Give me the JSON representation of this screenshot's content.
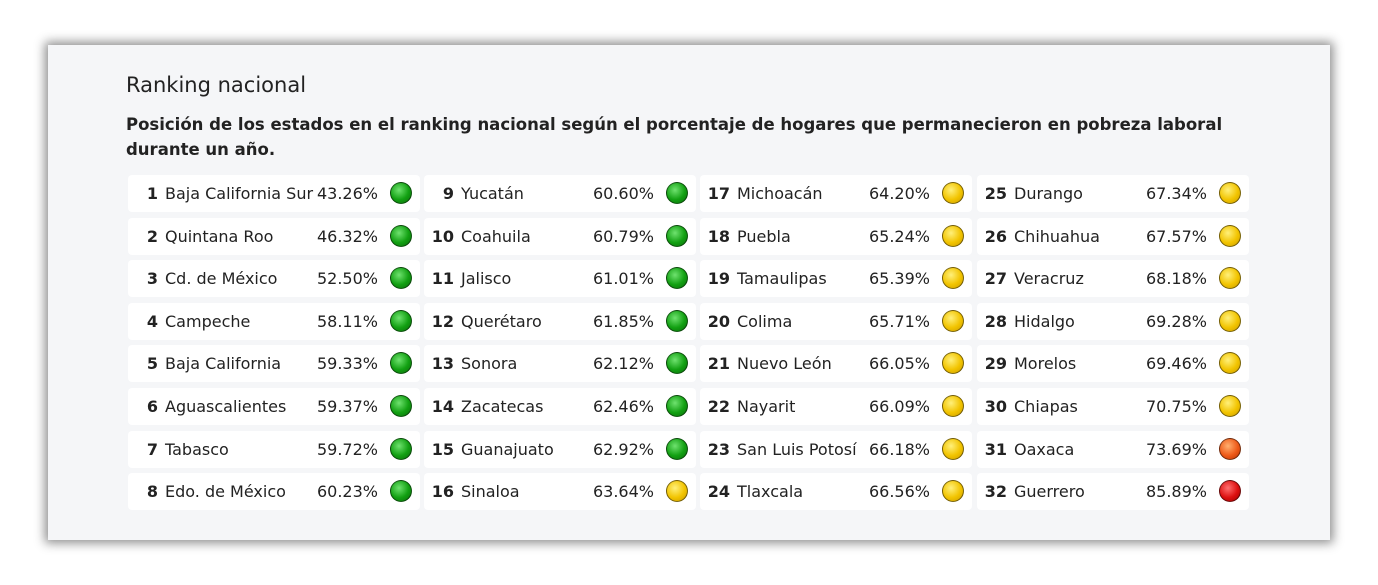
{
  "header": {
    "title": "Ranking nacional",
    "subtitle": "Posición de los estados en el ranking nacional según el porcentaje de hogares que permanecieron en pobreza laboral durante un año."
  },
  "table": {
    "rows": [
      {
        "rank": 1,
        "state": "Baja California Sur",
        "percent": "43.26%",
        "color": "green"
      },
      {
        "rank": 2,
        "state": "Quintana Roo",
        "percent": "46.32%",
        "color": "green"
      },
      {
        "rank": 3,
        "state": "Cd. de México",
        "percent": "52.50%",
        "color": "green"
      },
      {
        "rank": 4,
        "state": "Campeche",
        "percent": "58.11%",
        "color": "green"
      },
      {
        "rank": 5,
        "state": "Baja California",
        "percent": "59.33%",
        "color": "green"
      },
      {
        "rank": 6,
        "state": "Aguascalientes",
        "percent": "59.37%",
        "color": "green"
      },
      {
        "rank": 7,
        "state": "Tabasco",
        "percent": "59.72%",
        "color": "green"
      },
      {
        "rank": 8,
        "state": "Edo. de México",
        "percent": "60.23%",
        "color": "green"
      },
      {
        "rank": 9,
        "state": "Yucatán",
        "percent": "60.60%",
        "color": "green"
      },
      {
        "rank": 10,
        "state": "Coahuila",
        "percent": "60.79%",
        "color": "green"
      },
      {
        "rank": 11,
        "state": "Jalisco",
        "percent": "61.01%",
        "color": "green"
      },
      {
        "rank": 12,
        "state": "Querétaro",
        "percent": "61.85%",
        "color": "green"
      },
      {
        "rank": 13,
        "state": "Sonora",
        "percent": "62.12%",
        "color": "green"
      },
      {
        "rank": 14,
        "state": "Zacatecas",
        "percent": "62.46%",
        "color": "green"
      },
      {
        "rank": 15,
        "state": "Guanajuato",
        "percent": "62.92%",
        "color": "green"
      },
      {
        "rank": 16,
        "state": "Sinaloa",
        "percent": "63.64%",
        "color": "yellow"
      },
      {
        "rank": 17,
        "state": "Michoacán",
        "percent": "64.20%",
        "color": "yellow"
      },
      {
        "rank": 18,
        "state": "Puebla",
        "percent": "65.24%",
        "color": "yellow"
      },
      {
        "rank": 19,
        "state": "Tamaulipas",
        "percent": "65.39%",
        "color": "yellow"
      },
      {
        "rank": 20,
        "state": "Colima",
        "percent": "65.71%",
        "color": "yellow"
      },
      {
        "rank": 21,
        "state": "Nuevo León",
        "percent": "66.05%",
        "color": "yellow"
      },
      {
        "rank": 22,
        "state": "Nayarit",
        "percent": "66.09%",
        "color": "yellow"
      },
      {
        "rank": 23,
        "state": "San Luis Potosí",
        "percent": "66.18%",
        "color": "yellow"
      },
      {
        "rank": 24,
        "state": "Tlaxcala",
        "percent": "66.56%",
        "color": "yellow"
      },
      {
        "rank": 25,
        "state": "Durango",
        "percent": "67.34%",
        "color": "yellow"
      },
      {
        "rank": 26,
        "state": "Chihuahua",
        "percent": "67.57%",
        "color": "yellow"
      },
      {
        "rank": 27,
        "state": "Veracruz",
        "percent": "68.18%",
        "color": "yellow"
      },
      {
        "rank": 28,
        "state": "Hidalgo",
        "percent": "69.28%",
        "color": "yellow"
      },
      {
        "rank": 29,
        "state": "Morelos",
        "percent": "69.46%",
        "color": "yellow"
      },
      {
        "rank": 30,
        "state": "Chiapas",
        "percent": "70.75%",
        "color": "yellow"
      },
      {
        "rank": 31,
        "state": "Oaxaca",
        "percent": "73.69%",
        "color": "orange"
      },
      {
        "rank": 32,
        "state": "Guerrero",
        "percent": "85.89%",
        "color": "red"
      }
    ]
  }
}
